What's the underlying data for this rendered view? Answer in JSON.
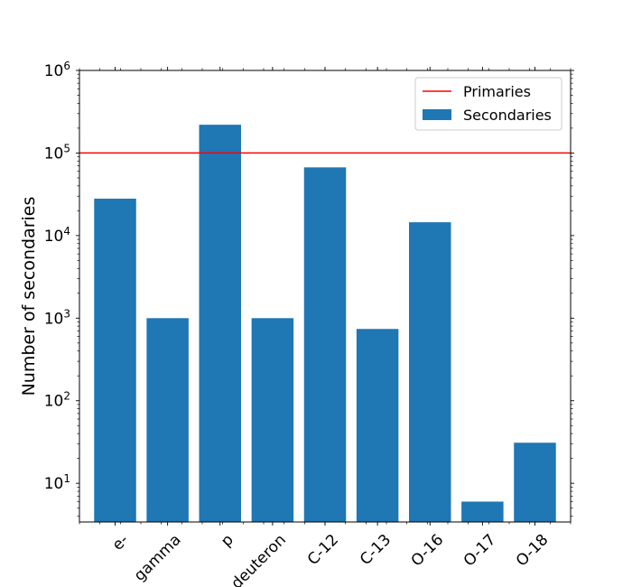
{
  "chart_data": {
    "type": "bar",
    "ylabel": "Number of secondaries",
    "yscale": "log",
    "ylim": [
      3.4,
      1000000
    ],
    "y_ticks": [
      {
        "value": 10,
        "mantissa": "10",
        "exp": "1"
      },
      {
        "value": 100,
        "mantissa": "10",
        "exp": "2"
      },
      {
        "value": 1000,
        "mantissa": "10",
        "exp": "3"
      },
      {
        "value": 10000,
        "mantissa": "10",
        "exp": "4"
      },
      {
        "value": 100000,
        "mantissa": "10",
        "exp": "5"
      },
      {
        "value": 1000000,
        "mantissa": "10",
        "exp": "6"
      }
    ],
    "categories": [
      "e-",
      "gamma",
      "p",
      "deuteron",
      "C-12",
      "C-13",
      "O-16",
      "O-17",
      "O-18"
    ],
    "series": [
      {
        "name": "Secondaries",
        "color": "#1f77b4",
        "values": [
          28000,
          1000,
          220000,
          1000,
          67000,
          740,
          14500,
          6,
          31
        ]
      }
    ],
    "reference_lines": [
      {
        "name": "Primaries",
        "value": 100000,
        "color": "#ff0000"
      }
    ],
    "legend": {
      "position": "top-right",
      "entries": [
        {
          "label": "Primaries",
          "kind": "line",
          "color": "#ff0000"
        },
        {
          "label": "Secondaries",
          "kind": "patch",
          "color": "#1f77b4"
        }
      ]
    },
    "grid": false
  }
}
